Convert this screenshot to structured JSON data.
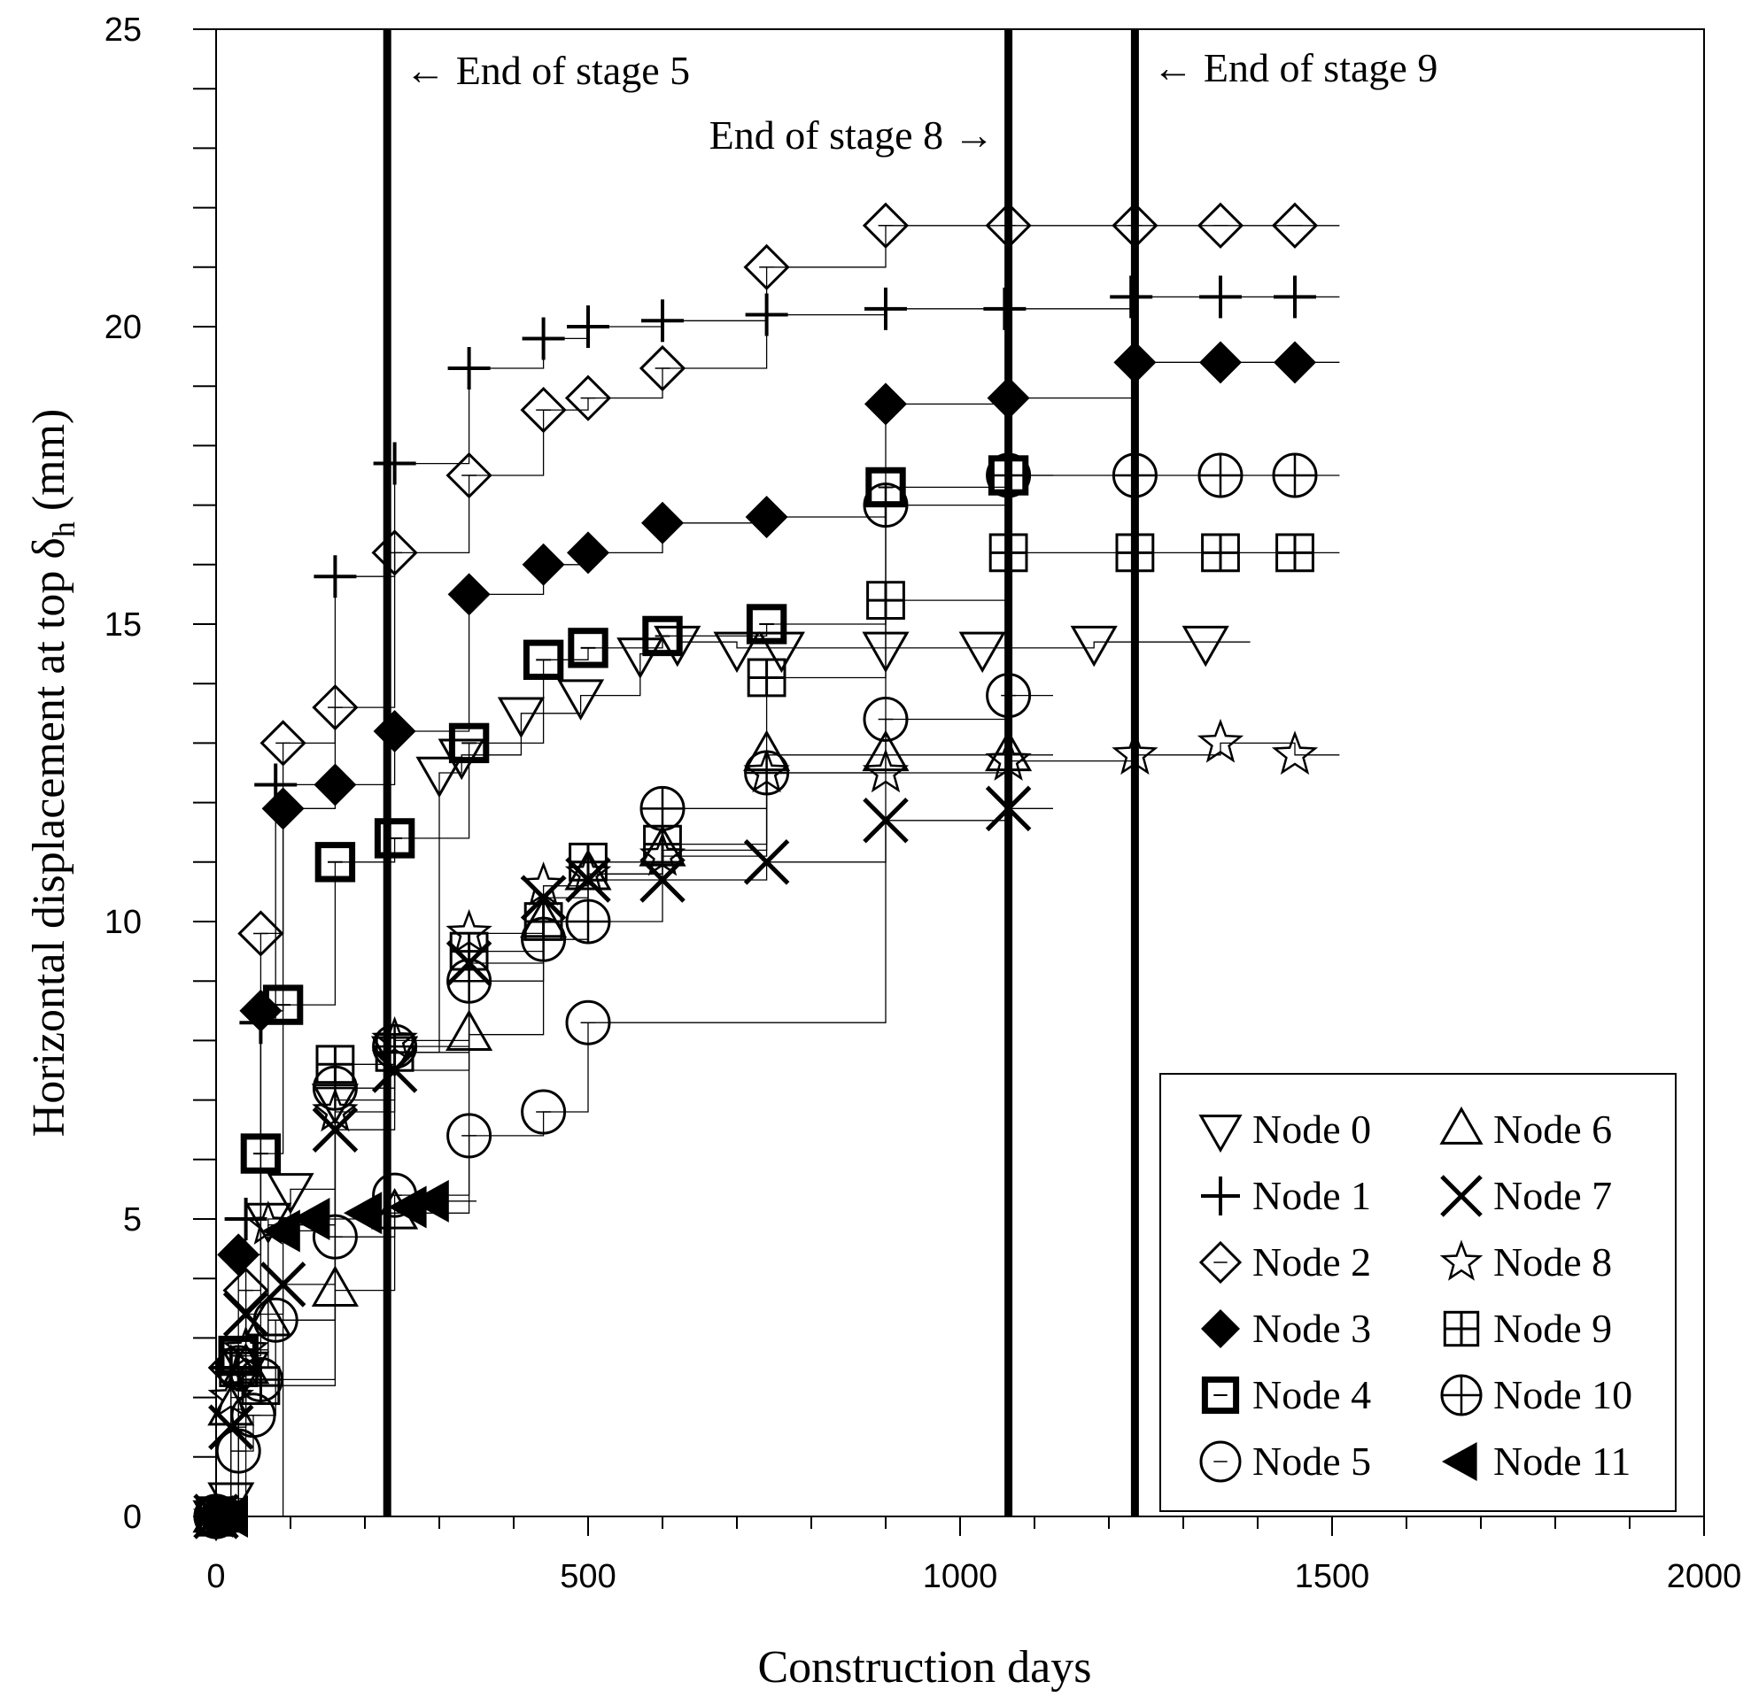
{
  "chart_data": {
    "type": "scatter",
    "xlabel": "Construction days",
    "ylabel": "Horizontal displacement at top δ",
    "ylabel_sub": "h",
    "ylabel_unit": "(mm)",
    "xlim": [
      0,
      2000
    ],
    "ylim": [
      0,
      25
    ],
    "x_ticks": [
      0,
      500,
      1000,
      1500,
      2000
    ],
    "x_tick_labels": [
      "0",
      "500",
      "1000",
      "1500",
      "2000"
    ],
    "x_minor_step": 100,
    "y_ticks": [
      0,
      5,
      10,
      15,
      20,
      25
    ],
    "y_tick_labels": [
      "0",
      "5",
      "10",
      "15",
      "20",
      "25"
    ],
    "y_minor_step": 1,
    "grid": false,
    "legend_position": "bottom-right",
    "vertical_lines": [
      {
        "x": 230,
        "label": "← End of stage 5",
        "label_side": "right"
      },
      {
        "x": 1065,
        "label": "End of stage 8 →",
        "label_side": "left"
      },
      {
        "x": 1235,
        "label": "← End of stage 9",
        "label_side": "right"
      }
    ],
    "series": [
      {
        "name": "Node 0",
        "marker": "triangle-down",
        "x": [
          0,
          20,
          40,
          70,
          100,
          160,
          240,
          300,
          330,
          410,
          490,
          570,
          620,
          700,
          760,
          900,
          1030,
          1180,
          1330
        ],
        "y": [
          0,
          0.3,
          2.5,
          5,
          5.5,
          7,
          7.8,
          12.5,
          12.8,
          13.5,
          13.8,
          14.5,
          14.7,
          14.6,
          14.6,
          14.6,
          14.6,
          14.7,
          14.7
        ]
      },
      {
        "name": "Node 1",
        "marker": "plus",
        "x": [
          0,
          20,
          40,
          60,
          80,
          160,
          240,
          340,
          440,
          500,
          600,
          740,
          900,
          1060,
          1230,
          1350,
          1450
        ],
        "y": [
          0,
          2.5,
          5,
          8.3,
          12.3,
          15.8,
          17.7,
          19.3,
          19.8,
          20,
          20.1,
          20.2,
          20.3,
          20.3,
          20.5,
          20.5,
          20.5
        ]
      },
      {
        "name": "Node 2",
        "marker": "diamond-open",
        "x": [
          0,
          20,
          40,
          60,
          90,
          160,
          240,
          340,
          440,
          500,
          600,
          740,
          900,
          1065,
          1235,
          1350,
          1450
        ],
        "y": [
          0,
          2.5,
          3.8,
          9.8,
          13,
          13.6,
          16.2,
          17.5,
          18.6,
          18.8,
          19.3,
          21,
          21.7,
          21.7,
          21.7,
          21.7,
          21.7
        ]
      },
      {
        "name": "Node 3",
        "marker": "diamond-filled",
        "x": [
          0,
          30,
          60,
          90,
          160,
          240,
          340,
          440,
          500,
          600,
          740,
          900,
          1065,
          1235,
          1350,
          1450
        ],
        "y": [
          0,
          4.4,
          8.5,
          11.9,
          12.3,
          13.2,
          15.5,
          16,
          16.2,
          16.7,
          16.8,
          18.7,
          18.8,
          19.4,
          19.4,
          19.4
        ]
      },
      {
        "name": "Node 4",
        "marker": "square-bold",
        "x": [
          0,
          30,
          60,
          90,
          160,
          240,
          340,
          440,
          500,
          600,
          740,
          900,
          1065
        ],
        "y": [
          0,
          2.7,
          6.1,
          8.6,
          11,
          11.4,
          13,
          14.4,
          14.6,
          14.8,
          15,
          17.3,
          17.5
        ]
      },
      {
        "name": "Node 5",
        "marker": "circle-open",
        "x": [
          0,
          30,
          50,
          80,
          160,
          240,
          340,
          440,
          500,
          900,
          1065
        ],
        "y": [
          0,
          1.1,
          1.7,
          3.3,
          4.7,
          5.4,
          6.4,
          6.8,
          8.3,
          13.4,
          13.8
        ]
      },
      {
        "name": "Node 6",
        "marker": "triangle-up",
        "x": [
          0,
          20,
          40,
          70,
          160,
          240,
          340,
          440,
          500,
          600,
          740,
          900,
          1065
        ],
        "y": [
          0,
          1.8,
          2.5,
          3.3,
          3.8,
          5.1,
          8.1,
          10,
          10.8,
          11.2,
          12.8,
          12.8,
          12.8
        ]
      },
      {
        "name": "Node 7",
        "marker": "x",
        "x": [
          0,
          20,
          40,
          90,
          160,
          240,
          340,
          440,
          500,
          600,
          740,
          900,
          1065
        ],
        "y": [
          0,
          1.5,
          3.4,
          3.9,
          6.5,
          7.5,
          9.3,
          10.4,
          10.7,
          10.7,
          11,
          11.7,
          11.9
        ]
      },
      {
        "name": "Node 8",
        "marker": "star",
        "x": [
          0,
          20,
          40,
          70,
          160,
          240,
          340,
          440,
          500,
          600,
          740,
          900,
          1065,
          1235,
          1350,
          1450
        ],
        "y": [
          0,
          2,
          2.8,
          4.9,
          6.8,
          8,
          9.8,
          10.6,
          10.8,
          11.1,
          12.5,
          12.5,
          12.7,
          12.8,
          13,
          12.8
        ]
      },
      {
        "name": "Node 9",
        "marker": "square-grid",
        "x": [
          0,
          30,
          60,
          160,
          240,
          340,
          440,
          500,
          600,
          740,
          900,
          1065,
          1235,
          1350,
          1450
        ],
        "y": [
          0,
          2.5,
          2.2,
          7.6,
          7.8,
          9.5,
          10,
          11,
          11.3,
          14.1,
          15.4,
          16.2,
          16.2,
          16.2,
          16.2
        ]
      },
      {
        "name": "Node 10",
        "marker": "circle-plus",
        "x": [
          0,
          30,
          60,
          160,
          240,
          340,
          440,
          500,
          600,
          740,
          900,
          1065,
          1235,
          1350,
          1450
        ],
        "y": [
          0,
          2.5,
          2.3,
          7.2,
          7.9,
          9,
          9.7,
          10,
          11.9,
          12.5,
          17,
          17.5,
          17.5,
          17.5,
          17.5
        ]
      },
      {
        "name": "Node 11",
        "marker": "triangle-left",
        "x": [
          0,
          20,
          90,
          130,
          200,
          260,
          290
        ],
        "y": [
          0,
          0,
          4.8,
          5,
          5.1,
          5.2,
          5.3
        ]
      }
    ]
  }
}
